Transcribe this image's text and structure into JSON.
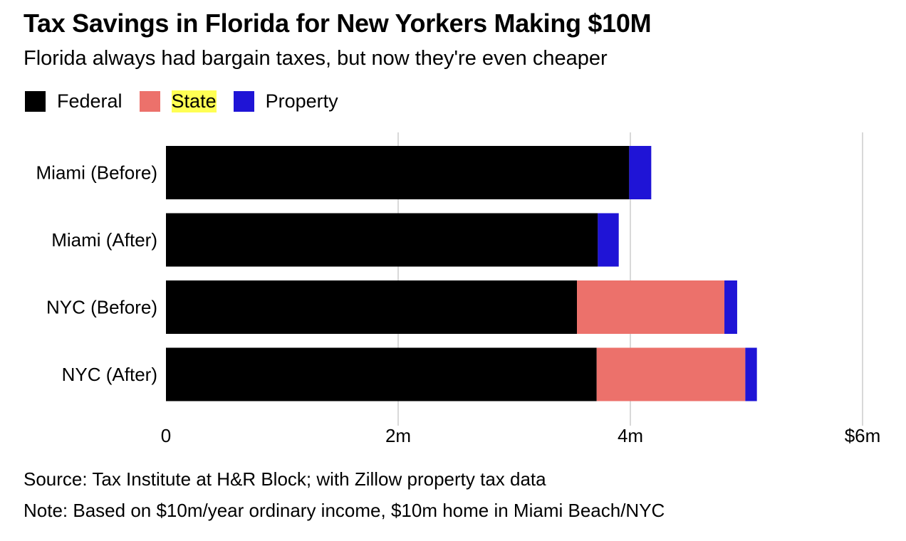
{
  "chart_data": {
    "type": "bar",
    "orientation": "horizontal",
    "stacked": true,
    "title": "Tax Savings in Florida for New Yorkers Making $10M",
    "subtitle": "Florida always had bargain taxes, but now they're even cheaper",
    "categories": [
      "Miami (Before)",
      "Miami (After)",
      "NYC (Before)",
      "NYC (After)"
    ],
    "series": [
      {
        "name": "Federal",
        "color": "#000000",
        "values": [
          3.99,
          3.72,
          3.54,
          3.71
        ]
      },
      {
        "name": "State",
        "color": "#ec716b",
        "values": [
          0,
          0,
          1.27,
          1.28
        ]
      },
      {
        "name": "Property",
        "color": "#1f14d6",
        "values": [
          0.19,
          0.18,
          0.11,
          0.1
        ]
      }
    ],
    "xlim": [
      0,
      6
    ],
    "xticks": [
      0,
      2,
      4,
      6
    ],
    "xtick_labels": [
      "0",
      "2m",
      "4m",
      "$6m"
    ],
    "grid": true,
    "legend_position": "top-left",
    "source": "Source: Tax Institute at H&R Block; with Zillow property tax data",
    "note": "Note: Based on $10m/year ordinary income, $10m home in Miami Beach/NYC"
  }
}
